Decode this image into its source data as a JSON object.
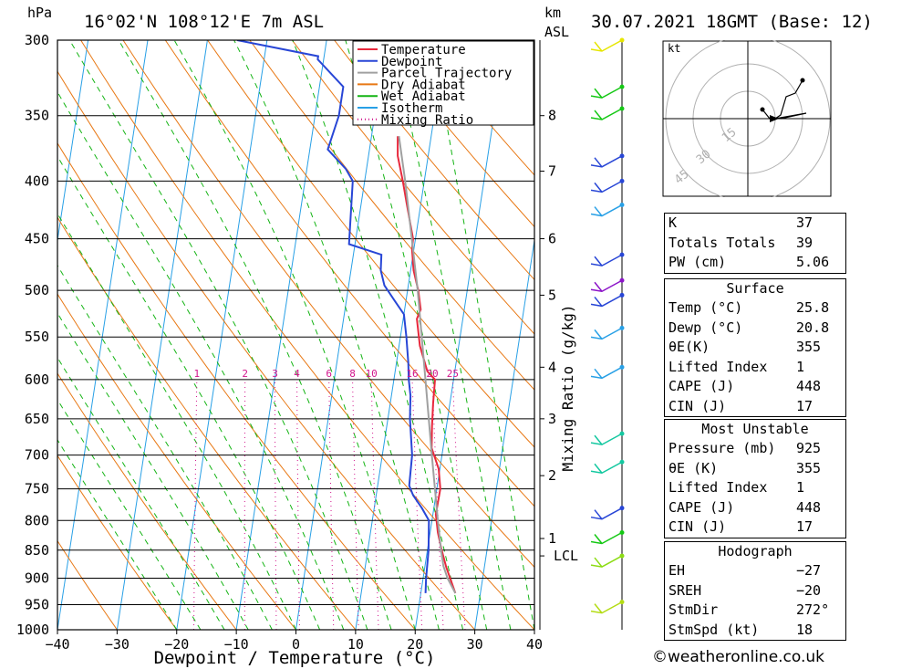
{
  "header": {
    "pressure_unit": "hPa",
    "location": "16°02'N  108°12'E  7m  ASL",
    "height_unit_line1": "km",
    "height_unit_line2": "ASL",
    "datetime": "30.07.2021  18GMT  (Base: 12)"
  },
  "chart_data": {
    "type": "line",
    "title": "16°02'N  108°12'E  7m  ASL",
    "xlabel": "Dewpoint / Temperature (°C)",
    "ylabel": "hPa",
    "x_ticks": [
      -40,
      -30,
      -20,
      -10,
      0,
      10,
      20,
      30,
      40
    ],
    "x_tick_labels": [
      "−40",
      "−30",
      "−20",
      "−10",
      "0",
      "10",
      "20",
      "30",
      "40"
    ],
    "y_ticks": [
      300,
      350,
      400,
      450,
      500,
      550,
      600,
      650,
      700,
      750,
      800,
      850,
      900,
      950,
      1000
    ],
    "xlim": [
      -40,
      40
    ],
    "ylim": [
      1000,
      300
    ],
    "y_scale": "log",
    "km_labels": [
      {
        "km": "8",
        "p": 350
      },
      {
        "km": "7",
        "p": 392
      },
      {
        "km": "6",
        "p": 450
      },
      {
        "km": "5",
        "p": 505
      },
      {
        "km": "4",
        "p": 585
      },
      {
        "km": "3",
        "p": 650
      },
      {
        "km": "2",
        "p": 730
      },
      {
        "km": "1",
        "p": 830
      },
      {
        "km": "LCL",
        "p": 860
      }
    ],
    "mixing_ratio_label": "Mixing Ratio (g/kg)",
    "mixing_ratios": [
      "1",
      "2",
      "3",
      "4",
      "6",
      "8",
      "10",
      "16",
      "20",
      "25"
    ],
    "legend": {
      "position": "top-center",
      "entries": [
        {
          "name": "Temperature",
          "color": "#e8283c",
          "style": "solid"
        },
        {
          "name": "Dewpoint",
          "color": "#2846d6",
          "style": "solid"
        },
        {
          "name": "Parcel Trajectory",
          "color": "#a0a0a0",
          "style": "solid"
        },
        {
          "name": "Dry Adiabat",
          "color": "#e87814",
          "style": "solid"
        },
        {
          "name": "Wet Adiabat",
          "color": "#14b414",
          "style": "solid"
        },
        {
          "name": "Isotherm",
          "color": "#28a0e6",
          "style": "solid"
        },
        {
          "name": "Mixing Ratio",
          "color": "#d2148c",
          "style": "dotted"
        }
      ]
    },
    "series": [
      {
        "name": "Temperature",
        "color": "#e8283c",
        "points": [
          [
            928,
            25.8
          ],
          [
            880,
            23.6
          ],
          [
            850,
            22.4
          ],
          [
            820,
            21.3
          ],
          [
            790,
            20.5
          ],
          [
            750,
            20.6
          ],
          [
            720,
            19.8
          ],
          [
            690,
            18.1
          ],
          [
            660,
            17.6
          ],
          [
            630,
            17.2
          ],
          [
            600,
            16.9
          ],
          [
            590,
            15.4
          ],
          [
            560,
            13.5
          ],
          [
            530,
            12.3
          ],
          [
            520,
            12.7
          ],
          [
            500,
            11.8
          ],
          [
            480,
            10.5
          ],
          [
            460,
            9.7
          ],
          [
            450,
            9.6
          ],
          [
            420,
            7.7
          ],
          [
            400,
            6.4
          ],
          [
            380,
            4.9
          ],
          [
            365,
            4.4
          ]
        ]
      },
      {
        "name": "Dewpoint",
        "color": "#2846d6",
        "points": [
          [
            928,
            20.8
          ],
          [
            900,
            20.5
          ],
          [
            850,
            20.2
          ],
          [
            800,
            19.5
          ],
          [
            780,
            18.0
          ],
          [
            760,
            16.2
          ],
          [
            745,
            15.3
          ],
          [
            700,
            15.0
          ],
          [
            650,
            13.7
          ],
          [
            620,
            13.2
          ],
          [
            600,
            12.5
          ],
          [
            580,
            12.0
          ],
          [
            550,
            11.0
          ],
          [
            525,
            10.0
          ],
          [
            510,
            8.0
          ],
          [
            495,
            6.0
          ],
          [
            480,
            5.0
          ],
          [
            465,
            4.7
          ],
          [
            455,
            -1.0
          ],
          [
            400,
            -2.0
          ],
          [
            390,
            -3.5
          ],
          [
            375,
            -7.0
          ],
          [
            350,
            -6.0
          ],
          [
            330,
            -6.0
          ],
          [
            312,
            -11.0
          ],
          [
            310,
            -11.0
          ],
          [
            300,
            -25.0
          ]
        ]
      },
      {
        "name": "Parcel Trajectory",
        "color": "#a0a0a0",
        "points": [
          [
            928,
            25.8
          ],
          [
            900,
            24.1
          ],
          [
            878,
            23.1
          ],
          [
            850,
            22.3
          ],
          [
            800,
            21.0
          ],
          [
            700,
            18.3
          ],
          [
            600,
            15.3
          ],
          [
            500,
            11.7
          ],
          [
            400,
            6.8
          ],
          [
            365,
            4.6
          ]
        ]
      }
    ],
    "wind_barbs": [
      {
        "p": 300,
        "color": "#e6e600"
      },
      {
        "p": 330,
        "color": "#14c814"
      },
      {
        "p": 345,
        "color": "#14c814"
      },
      {
        "p": 380,
        "color": "#2846d6"
      },
      {
        "p": 400,
        "color": "#2846d6"
      },
      {
        "p": 420,
        "color": "#28a0e6"
      },
      {
        "p": 465,
        "color": "#2846d6"
      },
      {
        "p": 490,
        "color": "#8c14c8"
      },
      {
        "p": 505,
        "color": "#2846d6"
      },
      {
        "p": 540,
        "color": "#28a0e6"
      },
      {
        "p": 585,
        "color": "#28a0e6"
      },
      {
        "p": 670,
        "color": "#14c8a0"
      },
      {
        "p": 710,
        "color": "#14c8a0"
      },
      {
        "p": 780,
        "color": "#2846d6"
      },
      {
        "p": 820,
        "color": "#14c814"
      },
      {
        "p": 860,
        "color": "#8cdc14"
      },
      {
        "p": 945,
        "color": "#b4dc14"
      }
    ]
  },
  "hodograph": {
    "unit": "kt",
    "ring_labels": [
      "15",
      "30",
      "45"
    ]
  },
  "indices": {
    "rows": [
      {
        "key": "K",
        "value": "37"
      },
      {
        "key": "Totals Totals",
        "value": "39"
      },
      {
        "key": "PW (cm)",
        "value": "5.06"
      }
    ]
  },
  "surface": {
    "title": "Surface",
    "rows": [
      {
        "key": "Temp (°C)",
        "value": "25.8"
      },
      {
        "key": "Dewp (°C)",
        "value": "20.8"
      },
      {
        "key": "θE(K)",
        "value": "355"
      },
      {
        "key": "Lifted Index",
        "value": "1"
      },
      {
        "key": "CAPE (J)",
        "value": "448"
      },
      {
        "key": "CIN (J)",
        "value": "17"
      }
    ]
  },
  "most_unstable": {
    "title": "Most Unstable",
    "rows": [
      {
        "key": "Pressure (mb)",
        "value": "925"
      },
      {
        "key": "θE (K)",
        "value": "355"
      },
      {
        "key": "Lifted Index",
        "value": "1"
      },
      {
        "key": "CAPE (J)",
        "value": "448"
      },
      {
        "key": "CIN (J)",
        "value": "17"
      }
    ]
  },
  "hodograph_params": {
    "title": "Hodograph",
    "rows": [
      {
        "key": "EH",
        "value": "−27"
      },
      {
        "key": "SREH",
        "value": "−20"
      },
      {
        "key": "StmDir",
        "value": "272°"
      },
      {
        "key": "StmSpd (kt)",
        "value": "18"
      }
    ]
  },
  "footer": {
    "copyright": "©weatheronline.co.uk"
  }
}
